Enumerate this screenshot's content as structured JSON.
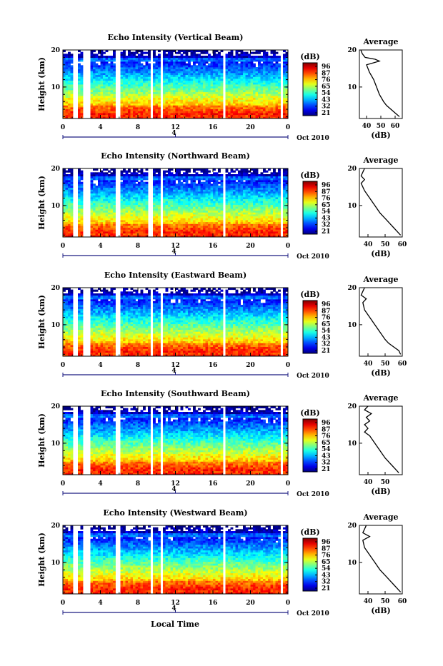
{
  "figure": {
    "xlabel": "Local Time",
    "colorbar_ticks": [
      "96",
      "87",
      "76",
      "65",
      "54",
      "43",
      "32",
      "21"
    ],
    "colorbar_unit": "(dB)",
    "date_label": "Oct 2010",
    "x_ticks": [
      "0",
      "4",
      "8",
      "12",
      "16",
      "20",
      "0"
    ],
    "date_tick": "4",
    "avg_title": "Average",
    "avg_xlabel": "(dB)"
  },
  "chart_data": [
    {
      "type": "heatmap",
      "title": "Echo Intensity (Vertical Beam)",
      "ylabel": "Height (km)",
      "y_ticks": [
        "20",
        "10"
      ],
      "xlim": [
        0,
        24
      ],
      "ylim": [
        1.5,
        20
      ],
      "zlim": [
        21,
        96
      ],
      "data_gaps_hours": [
        [
          1.2,
          1.5
        ],
        [
          2.2,
          2.8
        ],
        [
          5.6,
          6.0
        ],
        [
          9.3,
          9.6
        ],
        [
          10.5,
          10.7
        ],
        [
          17.0,
          17.2
        ],
        [
          23.3,
          23.5
        ]
      ],
      "average_profile": {
        "xlim": [
          35,
          65
        ],
        "x_ticks": [
          "40",
          "50",
          "60"
        ],
        "y_ticks": [
          "20",
          "10"
        ],
        "height_km": [
          2,
          3,
          4,
          5,
          6,
          8,
          10,
          12,
          14,
          16,
          17,
          17.5,
          18,
          19,
          20
        ],
        "db": [
          63,
          60,
          57,
          54,
          52,
          49,
          47,
          45,
          42,
          40,
          49,
          46,
          39,
          37,
          36
        ]
      }
    },
    {
      "type": "heatmap",
      "title": "Echo Intensity (Northward Beam)",
      "ylabel": "Height (km)",
      "y_ticks": [
        "20",
        "10"
      ],
      "xlim": [
        0,
        24
      ],
      "ylim": [
        1.5,
        20
      ],
      "zlim": [
        21,
        96
      ],
      "data_gaps_hours": [
        [
          1.2,
          1.5
        ],
        [
          2.2,
          2.8
        ],
        [
          5.6,
          6.0
        ],
        [
          9.0,
          9.6
        ],
        [
          10.5,
          10.7
        ],
        [
          17.0,
          17.2
        ],
        [
          23.3,
          23.5
        ]
      ],
      "average_profile": {
        "xlim": [
          35,
          60
        ],
        "x_ticks": [
          "40",
          "50",
          "60"
        ],
        "y_ticks": [
          "20",
          "10"
        ],
        "height_km": [
          2,
          3,
          4,
          5,
          6,
          8,
          10,
          12,
          14,
          16,
          17,
          18,
          19,
          20
        ],
        "db": [
          59,
          57,
          55,
          53,
          51,
          47,
          44,
          41,
          38,
          36,
          38,
          36,
          37,
          38
        ]
      }
    },
    {
      "type": "heatmap",
      "title": "Echo Intensity (Eastward Beam)",
      "ylabel": "Height (km)",
      "y_ticks": [
        "20",
        "10"
      ],
      "xlim": [
        0,
        24
      ],
      "ylim": [
        1.5,
        20
      ],
      "zlim": [
        21,
        96
      ],
      "data_gaps_hours": [
        [
          1.2,
          1.5
        ],
        [
          2.2,
          2.8
        ],
        [
          5.6,
          6.0
        ],
        [
          9.3,
          9.6
        ],
        [
          10.5,
          10.7
        ],
        [
          17.0,
          17.2
        ],
        [
          23.3,
          23.5
        ]
      ],
      "average_profile": {
        "xlim": [
          35,
          60
        ],
        "x_ticks": [
          "40",
          "50",
          "60"
        ],
        "y_ticks": [
          "20",
          "10"
        ],
        "height_km": [
          2,
          3,
          4,
          5,
          6,
          8,
          10,
          12,
          14,
          16,
          17,
          18,
          19,
          20
        ],
        "db": [
          59,
          58,
          55,
          52,
          50,
          47,
          44,
          41,
          38,
          37,
          39,
          36,
          37,
          38
        ]
      }
    },
    {
      "type": "heatmap",
      "title": "Echo Intensity (Southward Beam)",
      "ylabel": "Height (km)",
      "y_ticks": [
        "20",
        "10"
      ],
      "xlim": [
        0,
        24
      ],
      "ylim": [
        1.5,
        20
      ],
      "zlim": [
        21,
        96
      ],
      "data_gaps_hours": [
        [
          1.2,
          1.5
        ],
        [
          2.2,
          2.8
        ],
        [
          5.6,
          6.0
        ],
        [
          9.3,
          9.6
        ],
        [
          10.5,
          10.7
        ],
        [
          17.0,
          17.2
        ],
        [
          23.3,
          23.5
        ]
      ],
      "average_profile": {
        "xlim": [
          35,
          60
        ],
        "x_ticks": [
          "40",
          "50"
        ],
        "y_ticks": [
          "20",
          "10"
        ],
        "height_km": [
          2,
          3,
          4,
          5,
          6,
          8,
          10,
          12,
          13,
          14,
          15,
          16,
          17,
          18,
          19,
          20
        ],
        "db": [
          58,
          56,
          54,
          52,
          50,
          47,
          44,
          41,
          38,
          40,
          38,
          41,
          39,
          42,
          38,
          40
        ]
      }
    },
    {
      "type": "heatmap",
      "title": "Echo Intensity (Westward Beam)",
      "ylabel": "Height (km)",
      "y_ticks": [
        "20",
        "10"
      ],
      "xlim": [
        0,
        24
      ],
      "ylim": [
        1.5,
        20
      ],
      "zlim": [
        21,
        96
      ],
      "data_gaps_hours": [
        [
          1.2,
          1.5
        ],
        [
          2.2,
          2.8
        ],
        [
          5.6,
          6.0
        ],
        [
          9.3,
          9.6
        ],
        [
          10.5,
          10.7
        ],
        [
          17.0,
          17.2
        ],
        [
          23.3,
          23.5
        ]
      ],
      "average_profile": {
        "xlim": [
          35,
          60
        ],
        "x_ticks": [
          "40",
          "50",
          "60"
        ],
        "y_ticks": [
          "20",
          "10"
        ],
        "height_km": [
          2,
          3,
          4,
          5,
          6,
          8,
          10,
          12,
          14,
          16,
          17,
          18,
          19,
          20
        ],
        "db": [
          59,
          57,
          55,
          53,
          51,
          47,
          44,
          41,
          38,
          37,
          41,
          37,
          38,
          39
        ]
      }
    }
  ]
}
